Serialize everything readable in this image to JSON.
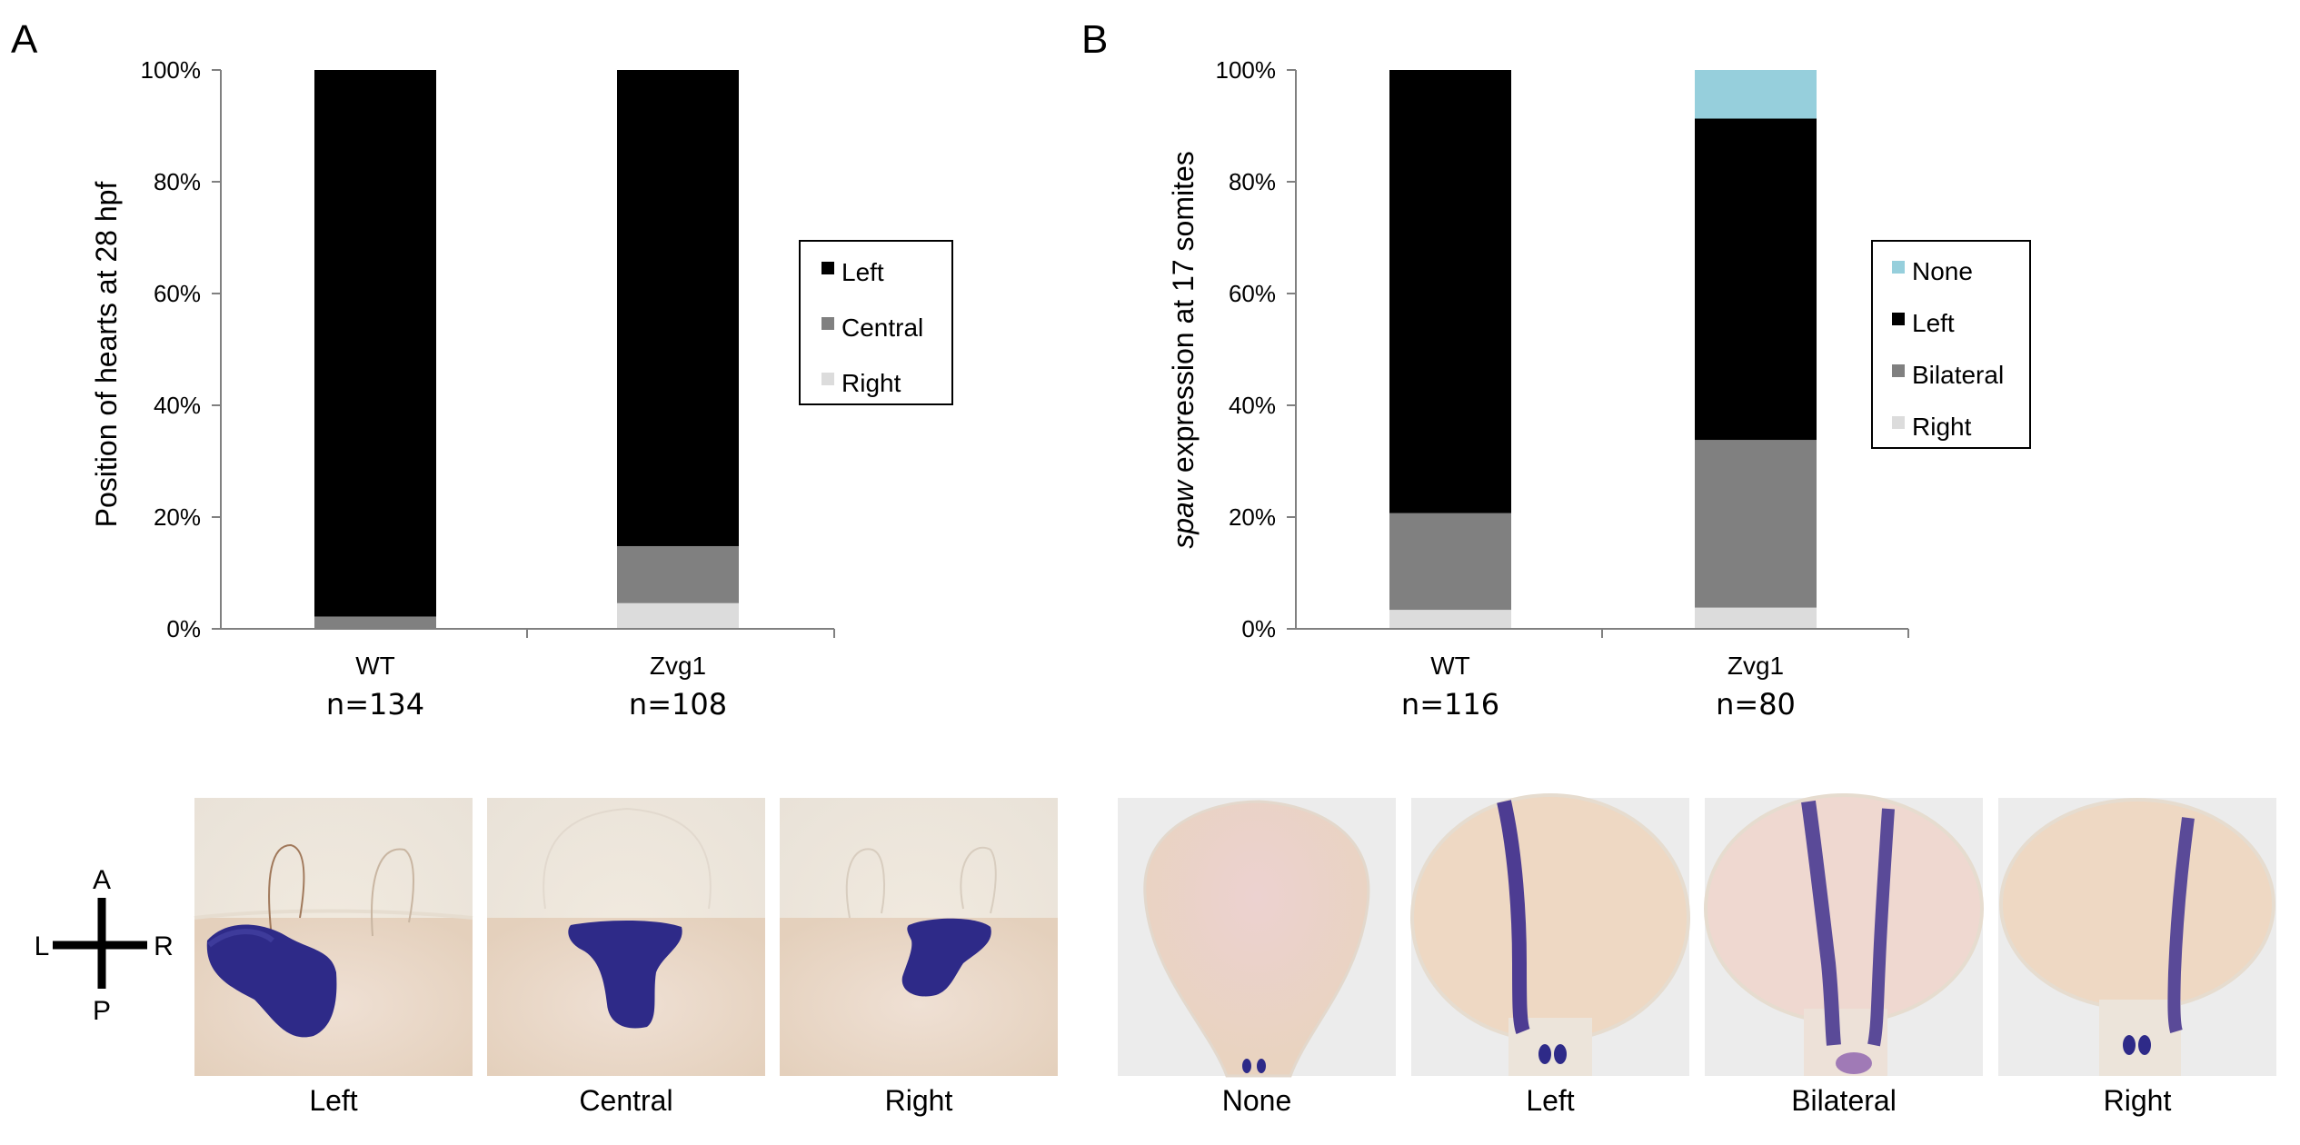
{
  "panels": {
    "a_letter": "A",
    "b_letter": "B"
  },
  "chart_data": [
    {
      "type": "bar",
      "stacked": true,
      "ylabel": "Position of hearts at 28 hpf",
      "ylim": [
        0,
        100
      ],
      "yticks": [
        "0%",
        "20%",
        "40%",
        "60%",
        "80%",
        "100%"
      ],
      "categories": [
        "WT",
        "Zvg1"
      ],
      "n_labels": [
        "n=134",
        "n=108"
      ],
      "series": [
        {
          "name": "Right",
          "values": [
            0.0,
            4.6
          ],
          "color": "#dcdcdc"
        },
        {
          "name": "Central",
          "values": [
            2.2,
            10.2
          ],
          "color": "#808080"
        },
        {
          "name": "Left",
          "values": [
            97.8,
            85.2
          ],
          "color": "#000000"
        }
      ],
      "legend_order": [
        "Left",
        "Central",
        "Right"
      ],
      "legend_position": "right",
      "grid": false
    },
    {
      "type": "bar",
      "stacked": true,
      "ylabel_italic": "spaw",
      "ylabel": " expression at 17 somites",
      "ylim": [
        0,
        100
      ],
      "yticks": [
        "0%",
        "20%",
        "40%",
        "60%",
        "80%",
        "100%"
      ],
      "categories": [
        "WT",
        "Zvg1"
      ],
      "n_labels": [
        "n=116",
        "n=80"
      ],
      "series": [
        {
          "name": "Right",
          "values": [
            3.4,
            3.8
          ],
          "color": "#dcdcdc"
        },
        {
          "name": "Bilateral",
          "values": [
            17.3,
            30.0
          ],
          "color": "#808080"
        },
        {
          "name": "Left",
          "values": [
            79.3,
            57.5
          ],
          "color": "#000000"
        },
        {
          "name": "None",
          "values": [
            0.0,
            8.7
          ],
          "color": "#96cfdc"
        }
      ],
      "legend_order": [
        "None",
        "Left",
        "Bilateral",
        "Right"
      ],
      "legend_position": "right",
      "grid": false
    }
  ],
  "images": {
    "heart_captions": [
      "Left",
      "Central",
      "Right"
    ],
    "spaw_captions": [
      "None",
      "Left",
      "Bilateral",
      "Right"
    ]
  },
  "axis_indicator": {
    "top": "A",
    "bottom": "P",
    "left": "L",
    "right": "R"
  }
}
